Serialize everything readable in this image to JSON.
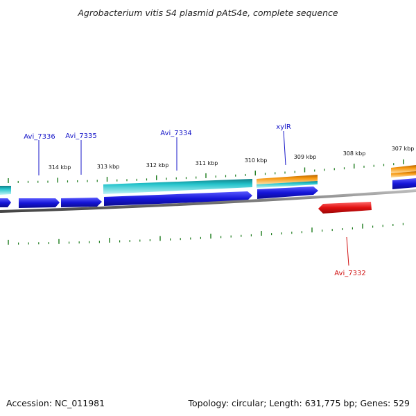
{
  "title": "Agrobacterium vitis S4 plasmid pAtS4e, complete sequence",
  "footer": {
    "accession": "Accession: NC_011981",
    "topology": "Topology: circular; Length: 631,775 bp; Genes: 529"
  },
  "colors": {
    "backbone": "#8c8c8c",
    "tick": "#1a7a1a",
    "cds_forward": "#1515d8",
    "cds_reverse": "#e01010",
    "cog_cyan": "#20b8bf",
    "cog_orange": "#f0900a",
    "label_blue": "#1515c8",
    "label_red": "#d01010"
  },
  "scale_labels": [
    "314 kbp",
    "313 kbp",
    "312 kbp",
    "311 kbp",
    "310 kbp",
    "309 kbp",
    "308 kbp",
    "307 kbp"
  ],
  "gene_labels": [
    {
      "name": "Avi_7336",
      "strand": "forward"
    },
    {
      "name": "Avi_7335",
      "strand": "forward"
    },
    {
      "name": "Avi_7334",
      "strand": "forward"
    },
    {
      "name": "xylR",
      "strand": "forward"
    },
    {
      "name": "Avi_7332",
      "strand": "reverse"
    }
  ]
}
